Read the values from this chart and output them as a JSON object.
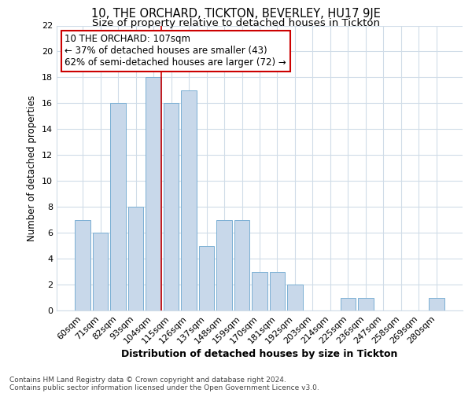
{
  "title": "10, THE ORCHARD, TICKTON, BEVERLEY, HU17 9JE",
  "subtitle": "Size of property relative to detached houses in Tickton",
  "xlabel": "Distribution of detached houses by size in Tickton",
  "ylabel": "Number of detached properties",
  "footnote1": "Contains HM Land Registry data © Crown copyright and database right 2024.",
  "footnote2": "Contains public sector information licensed under the Open Government Licence v3.0.",
  "categories": [
    "60sqm",
    "71sqm",
    "82sqm",
    "93sqm",
    "104sqm",
    "115sqm",
    "126sqm",
    "137sqm",
    "148sqm",
    "159sqm",
    "170sqm",
    "181sqm",
    "192sqm",
    "203sqm",
    "214sqm",
    "225sqm",
    "236sqm",
    "247sqm",
    "258sqm",
    "269sqm",
    "280sqm"
  ],
  "values": [
    7,
    6,
    16,
    8,
    18,
    16,
    17,
    5,
    7,
    7,
    3,
    3,
    2,
    0,
    0,
    1,
    1,
    0,
    0,
    0,
    1
  ],
  "bar_color": "#c8d8ea",
  "bar_edge_color": "#7aafd4",
  "vline_x_index": 4,
  "vline_color": "#cc0000",
  "annotation_text": "10 THE ORCHARD: 107sqm\n← 37% of detached houses are smaller (43)\n62% of semi-detached houses are larger (72) →",
  "annotation_box_color": "white",
  "annotation_box_edge": "#cc0000",
  "ylim": [
    0,
    22
  ],
  "yticks": [
    0,
    2,
    4,
    6,
    8,
    10,
    12,
    14,
    16,
    18,
    20,
    22
  ],
  "background_color": "#ffffff",
  "axes_background": "#ffffff",
  "grid_color": "#d0dce8",
  "title_fontsize": 10.5,
  "subtitle_fontsize": 9.5,
  "xlabel_fontsize": 9,
  "ylabel_fontsize": 8.5,
  "tick_fontsize": 8,
  "footnote_fontsize": 6.5,
  "annotation_fontsize": 8.5
}
